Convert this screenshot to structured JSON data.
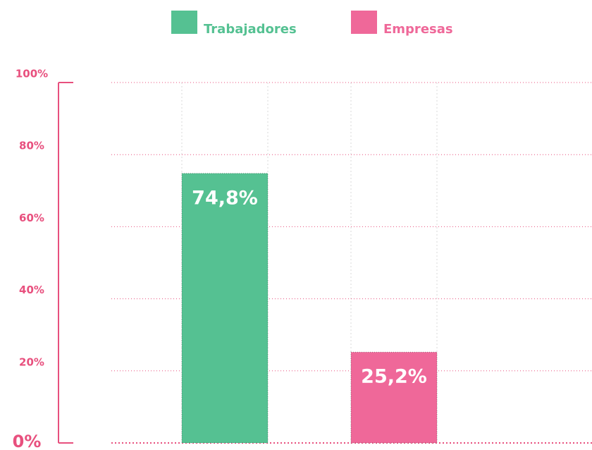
{
  "chart_data": {
    "type": "bar",
    "categories": [
      null
    ],
    "series": [
      {
        "name": "Trabajadores",
        "color": "#55c192",
        "values": [
          74.8
        ],
        "value_labels": [
          "74,8%"
        ]
      },
      {
        "name": "Empresas",
        "color": "#ef6899",
        "values": [
          25.2
        ],
        "value_labels": [
          "25,2%"
        ]
      }
    ],
    "ylim": [
      0,
      100
    ],
    "yticks": [
      {
        "value": 0,
        "label": "0%"
      },
      {
        "value": 20,
        "label": "20%"
      },
      {
        "value": 40,
        "label": "40%"
      },
      {
        "value": 60,
        "label": "60%"
      },
      {
        "value": 80,
        "label": "80%"
      },
      {
        "value": 100,
        "label": "100%"
      }
    ],
    "grid": true,
    "legend": "top"
  }
}
